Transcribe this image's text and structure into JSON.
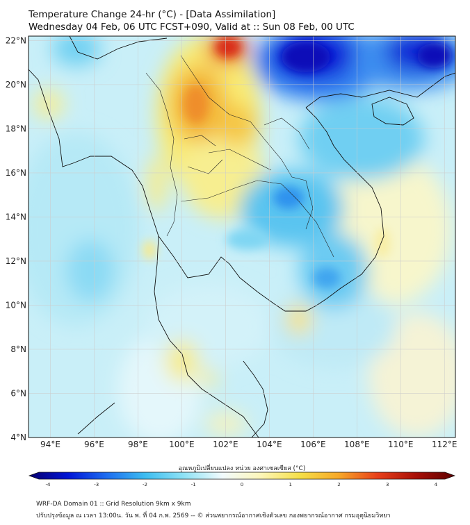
{
  "header": {
    "title": "Temperature Change 24-hr (°C) - [Data Assimilation]",
    "subtitle": "Wednesday 04 Feb, 06 UTC FCST+090, Valid at :: Sun 08 Feb, 00 UTC"
  },
  "map": {
    "lon_labels": [
      "94°E",
      "96°E",
      "98°E",
      "100°E",
      "102°E",
      "104°E",
      "106°E",
      "108°E",
      "110°E",
      "112°E"
    ],
    "lat_labels": [
      "22°N",
      "20°N",
      "18°N",
      "16°N",
      "14°N",
      "12°N",
      "10°N",
      "8°N",
      "6°N",
      "4°N"
    ],
    "lon_range": [
      93,
      112.5
    ],
    "lat_range": [
      4,
      22.2
    ],
    "grid": true,
    "field_hotspots": [
      {
        "lon": 101.8,
        "lat": 21.7,
        "value": 3.2
      },
      {
        "lon": 100.5,
        "lat": 19.2,
        "value": 2.6
      },
      {
        "lon": 100.6,
        "lat": 16.9,
        "value": 1.6
      },
      {
        "lon": 105.5,
        "lat": 21.5,
        "value": -4.0
      },
      {
        "lon": 109.5,
        "lat": 21.5,
        "value": -3.6
      },
      {
        "lon": 104.8,
        "lat": 15.0,
        "value": -2.0
      },
      {
        "lon": 107.0,
        "lat": 10.8,
        "value": -1.6
      },
      {
        "lon": 105.3,
        "lat": 9.6,
        "value": 1.2
      },
      {
        "lon": 100.3,
        "lat": 7.5,
        "value": 1.1
      }
    ]
  },
  "colorbar": {
    "label": "อุณหภูมิเปลี่ยนแปลง หน่วย องศาเซลเซียส (°C)",
    "ticks": [
      "-4",
      "-3",
      "-2",
      "-1",
      "0",
      "1",
      "2",
      "3",
      "4"
    ],
    "min": -4,
    "max": 4,
    "colors": [
      "#08006e",
      "#0015d6",
      "#1e6df0",
      "#3dbdf0",
      "#8fe2f5",
      "#f2fbfd",
      "#fdf6b8",
      "#f5df48",
      "#f7a828",
      "#e8401a",
      "#a81008",
      "#5e0000"
    ]
  },
  "footer": {
    "line1": "WRF-DA Domain 01 :: Grid Resolution 9km x 9km",
    "line2": "ปรับปรุงข้อมูล ณ เวลา 13:00น. วัน พ. ที่ 04 ก.พ. 2569 -- © ส่วนพยากรณ์อากาศเชิงตัวเลข กองพยากรณ์อากาศ กรมอุตุนิยมวิทยา"
  }
}
